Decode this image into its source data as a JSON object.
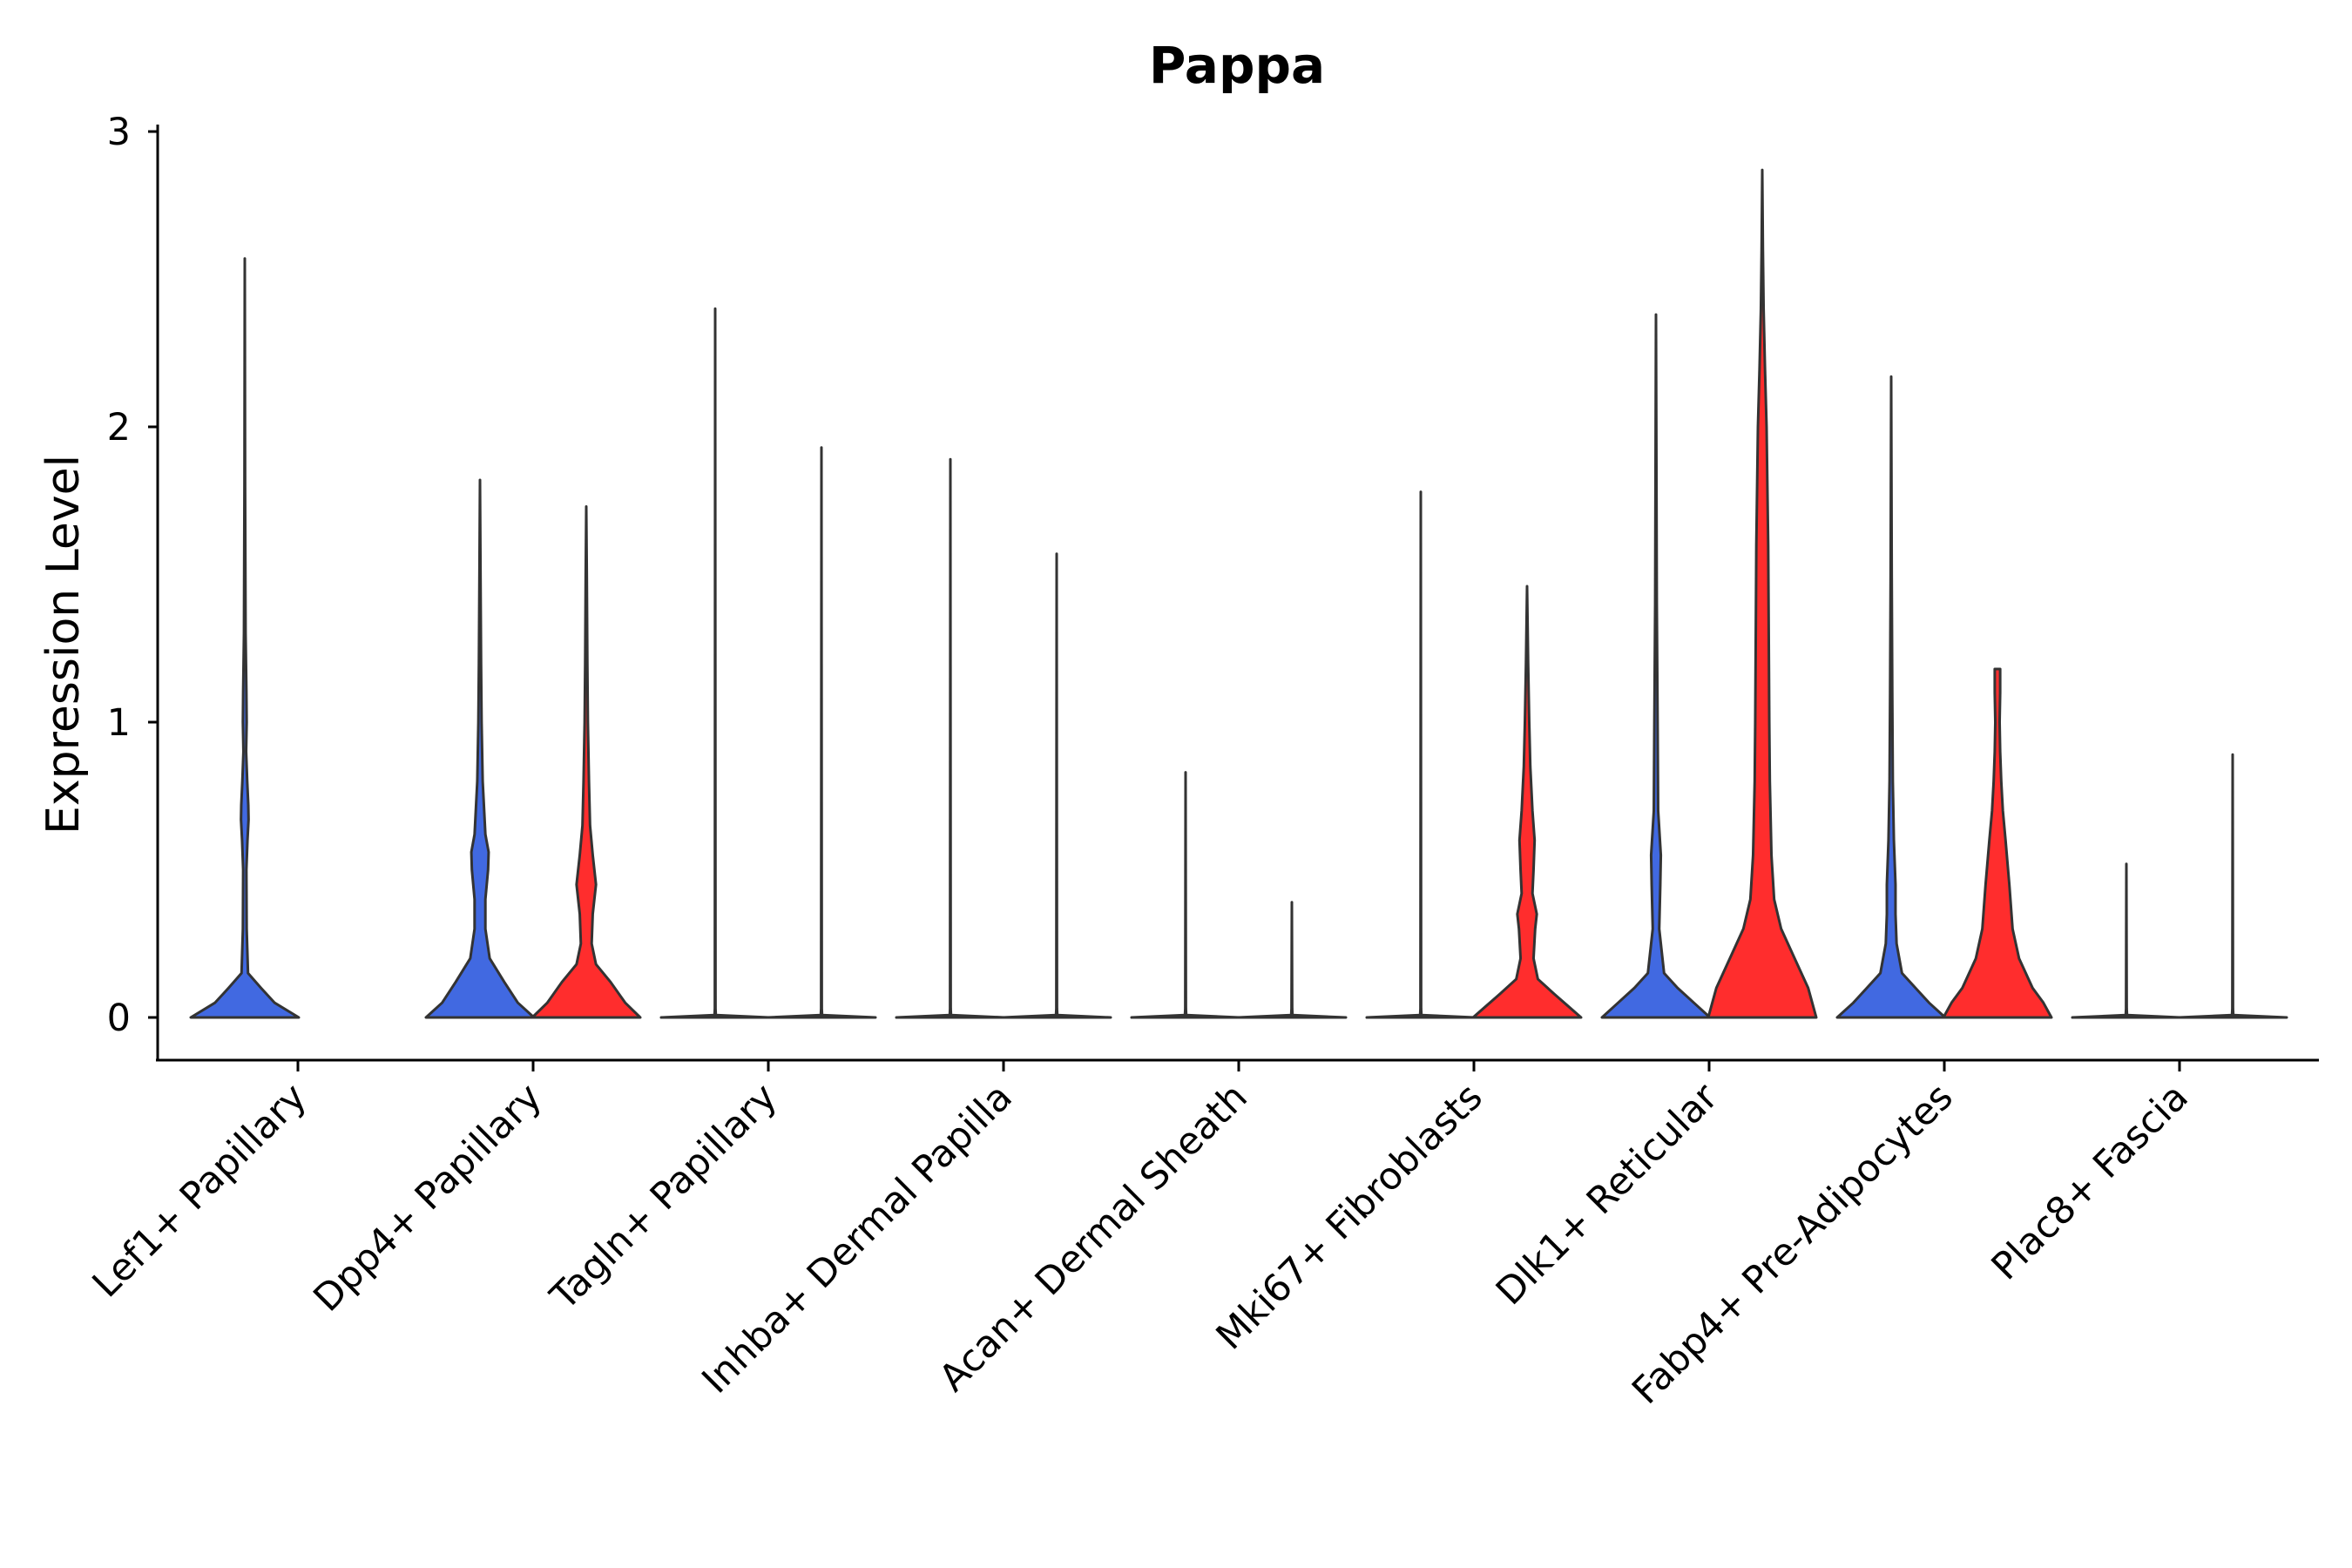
{
  "chart_data": {
    "type": "violin",
    "title": "Pappa",
    "xlabel": "",
    "ylabel": "Expression Level",
    "ylim": [
      -0.14,
      3
    ],
    "yticks": [
      0,
      1,
      2,
      3
    ],
    "grid": false,
    "legend": "none",
    "colors": {
      "group_a": "#4169E1",
      "group_b": "#FF2D2D",
      "stroke": "#333333"
    },
    "categories": [
      "Lef1+ Papillary",
      "Dpp4+ Papillary",
      "Tagln+ Papillary",
      "Inhba+ Dermal Papilla",
      "Acan+ Dermal Sheath",
      "Mki67+ Fibroblasts",
      "Dlk1+ Reticular",
      "Fabp4+ Pre-Adipocytes",
      "Plac8+ Fascia"
    ],
    "violins": [
      {
        "category": "Lef1+ Papillary",
        "group": "a",
        "max": 2.57,
        "density": [
          [
            0,
            1.0
          ],
          [
            0.05,
            0.55
          ],
          [
            0.1,
            0.3
          ],
          [
            0.15,
            0.06
          ],
          [
            0.3,
            0.035
          ],
          [
            0.5,
            0.03
          ],
          [
            0.6,
            0.05
          ],
          [
            0.67,
            0.07
          ],
          [
            0.72,
            0.065
          ],
          [
            0.8,
            0.045
          ],
          [
            0.9,
            0.025
          ],
          [
            1.0,
            0.035
          ],
          [
            1.1,
            0.03
          ],
          [
            1.3,
            0.015
          ],
          [
            1.8,
            0.006
          ],
          [
            2.57,
            0
          ]
        ]
      },
      {
        "category": "Dpp4+ Papillary",
        "group": "a",
        "max": 1.82,
        "density": [
          [
            0,
            1.0
          ],
          [
            0.05,
            0.7
          ],
          [
            0.12,
            0.45
          ],
          [
            0.2,
            0.18
          ],
          [
            0.3,
            0.1
          ],
          [
            0.4,
            0.1
          ],
          [
            0.5,
            0.15
          ],
          [
            0.56,
            0.16
          ],
          [
            0.62,
            0.1
          ],
          [
            0.8,
            0.05
          ],
          [
            1.0,
            0.03
          ],
          [
            1.2,
            0.02
          ],
          [
            1.5,
            0.01
          ],
          [
            1.82,
            0
          ]
        ]
      },
      {
        "category": "Dpp4+ Papillary",
        "group": "b",
        "max": 1.73,
        "density": [
          [
            0,
            1.0
          ],
          [
            0.05,
            0.72
          ],
          [
            0.12,
            0.45
          ],
          [
            0.18,
            0.18
          ],
          [
            0.25,
            0.1
          ],
          [
            0.35,
            0.12
          ],
          [
            0.45,
            0.18
          ],
          [
            0.55,
            0.12
          ],
          [
            0.65,
            0.07
          ],
          [
            0.8,
            0.05
          ],
          [
            1.0,
            0.03
          ],
          [
            1.2,
            0.02
          ],
          [
            1.5,
            0.01
          ],
          [
            1.73,
            0
          ]
        ]
      },
      {
        "category": "Tagln+ Papillary",
        "group": "a",
        "max": 2.4,
        "density": [
          [
            0,
            1.0
          ],
          [
            0.008,
            0.012
          ],
          [
            0.03,
            0.006
          ],
          [
            2.4,
            0
          ]
        ]
      },
      {
        "category": "Tagln+ Papillary",
        "group": "b",
        "max": 1.93,
        "density": [
          [
            0,
            1.0
          ],
          [
            0.008,
            0.012
          ],
          [
            0.03,
            0.006
          ],
          [
            1.93,
            0
          ]
        ]
      },
      {
        "category": "Inhba+ Dermal Papilla",
        "group": "a",
        "max": 1.89,
        "density": [
          [
            0,
            1.0
          ],
          [
            0.008,
            0.012
          ],
          [
            0.03,
            0.006
          ],
          [
            1.89,
            0
          ]
        ]
      },
      {
        "category": "Inhba+ Dermal Papilla",
        "group": "b",
        "max": 1.57,
        "density": [
          [
            0,
            1.0
          ],
          [
            0.008,
            0.012
          ],
          [
            0.03,
            0.006
          ],
          [
            1.57,
            0
          ]
        ]
      },
      {
        "category": "Acan+ Dermal Sheath",
        "group": "a",
        "max": 0.83,
        "density": [
          [
            0,
            1.0
          ],
          [
            0.008,
            0.012
          ],
          [
            0.03,
            0.006
          ],
          [
            0.83,
            0
          ]
        ]
      },
      {
        "category": "Acan+ Dermal Sheath",
        "group": "b",
        "max": 0.39,
        "density": [
          [
            0,
            1.0
          ],
          [
            0.008,
            0.012
          ],
          [
            0.03,
            0.006
          ],
          [
            0.39,
            0
          ]
        ]
      },
      {
        "category": "Mki67+ Fibroblasts",
        "group": "a",
        "max": 1.78,
        "density": [
          [
            0,
            1.0
          ],
          [
            0.008,
            0.012
          ],
          [
            0.03,
            0.006
          ],
          [
            1.78,
            0
          ]
        ]
      },
      {
        "category": "Mki67+ Fibroblasts",
        "group": "b",
        "max": 1.46,
        "density": [
          [
            0,
            1.0
          ],
          [
            0.04,
            0.75
          ],
          [
            0.08,
            0.5
          ],
          [
            0.13,
            0.2
          ],
          [
            0.2,
            0.12
          ],
          [
            0.3,
            0.15
          ],
          [
            0.35,
            0.18
          ],
          [
            0.42,
            0.1
          ],
          [
            0.5,
            0.12
          ],
          [
            0.6,
            0.14
          ],
          [
            0.7,
            0.1
          ],
          [
            0.85,
            0.06
          ],
          [
            1.0,
            0.04
          ],
          [
            1.2,
            0.02
          ],
          [
            1.46,
            0
          ]
        ]
      },
      {
        "category": "Dlk1+ Reticular",
        "group": "a",
        "max": 2.38,
        "density": [
          [
            0,
            1.0
          ],
          [
            0.05,
            0.7
          ],
          [
            0.1,
            0.4
          ],
          [
            0.15,
            0.15
          ],
          [
            0.3,
            0.06
          ],
          [
            0.45,
            0.08
          ],
          [
            0.55,
            0.09
          ],
          [
            0.7,
            0.04
          ],
          [
            1.0,
            0.03
          ],
          [
            1.4,
            0.015
          ],
          [
            2.0,
            0.006
          ],
          [
            2.38,
            0
          ]
        ]
      },
      {
        "category": "Dlk1+ Reticular",
        "group": "b",
        "max": 2.87,
        "density": [
          [
            0,
            1.0
          ],
          [
            0.1,
            0.85
          ],
          [
            0.2,
            0.6
          ],
          [
            0.3,
            0.35
          ],
          [
            0.4,
            0.22
          ],
          [
            0.55,
            0.17
          ],
          [
            0.8,
            0.14
          ],
          [
            1.0,
            0.13
          ],
          [
            1.3,
            0.12
          ],
          [
            1.6,
            0.11
          ],
          [
            2.0,
            0.08
          ],
          [
            2.2,
            0.05
          ],
          [
            2.4,
            0.025
          ],
          [
            2.6,
            0.012
          ],
          [
            2.87,
            0
          ]
        ]
      },
      {
        "category": "Fabp4+ Pre-Adipocytes",
        "group": "a",
        "max": 2.17,
        "density": [
          [
            0,
            1.0
          ],
          [
            0.05,
            0.7
          ],
          [
            0.1,
            0.45
          ],
          [
            0.15,
            0.2
          ],
          [
            0.25,
            0.1
          ],
          [
            0.35,
            0.08
          ],
          [
            0.45,
            0.08
          ],
          [
            0.6,
            0.05
          ],
          [
            0.8,
            0.03
          ],
          [
            1.1,
            0.02
          ],
          [
            1.5,
            0.01
          ],
          [
            2.17,
            0
          ]
        ]
      },
      {
        "category": "Fabp4+ Pre-Adipocytes",
        "group": "b",
        "max": 1.18,
        "density": [
          [
            0,
            1.0
          ],
          [
            0.05,
            0.85
          ],
          [
            0.1,
            0.65
          ],
          [
            0.2,
            0.4
          ],
          [
            0.3,
            0.28
          ],
          [
            0.45,
            0.22
          ],
          [
            0.6,
            0.15
          ],
          [
            0.7,
            0.1
          ],
          [
            0.8,
            0.07
          ],
          [
            0.9,
            0.05
          ],
          [
            1.0,
            0.04
          ],
          [
            1.1,
            0.05
          ],
          [
            1.18,
            0.05
          ]
        ]
      },
      {
        "category": "Plac8+ Fascia",
        "group": "a",
        "max": 0.52,
        "density": [
          [
            0,
            1.0
          ],
          [
            0.008,
            0.012
          ],
          [
            0.03,
            0.006
          ],
          [
            0.52,
            0
          ]
        ]
      },
      {
        "category": "Plac8+ Fascia",
        "group": "b",
        "max": 0.89,
        "density": [
          [
            0,
            1.0
          ],
          [
            0.008,
            0.012
          ],
          [
            0.03,
            0.006
          ],
          [
            0.89,
            0
          ]
        ]
      }
    ]
  }
}
